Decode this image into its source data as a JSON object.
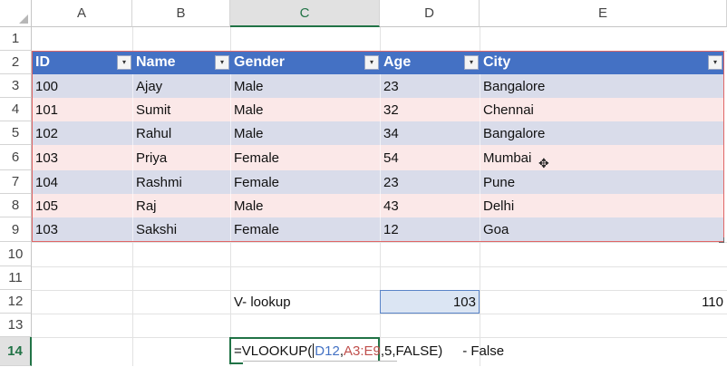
{
  "sheet": {
    "columns": [
      "A",
      "B",
      "C",
      "D",
      "E"
    ],
    "active_column": "C",
    "rows": [
      "1",
      "2",
      "3",
      "4",
      "5",
      "6",
      "7",
      "8",
      "9",
      "10",
      "11",
      "12",
      "13",
      "14"
    ],
    "active_row": "14"
  },
  "table": {
    "headers": [
      "ID",
      "Name",
      "Gender",
      "Age",
      "City"
    ],
    "rows": [
      [
        "100",
        "Ajay",
        "Male",
        "23",
        "Bangalore"
      ],
      [
        "101",
        "Sumit",
        "Male",
        "32",
        "Chennai"
      ],
      [
        "102",
        "Rahul",
        "Male",
        "34",
        "Bangalore"
      ],
      [
        "103",
        "Priya",
        "Female",
        "54",
        "Mumbai"
      ],
      [
        "104",
        "Rashmi",
        "Female",
        "23",
        "Pune"
      ],
      [
        "105",
        "Raj",
        "Male",
        "43",
        "Delhi"
      ],
      [
        "103",
        "Sakshi",
        "Female",
        "12",
        "Goa"
      ]
    ],
    "band_colors": [
      "#d9dcea",
      "#fbe8e8"
    ],
    "header_color": "#4471c4"
  },
  "lookup": {
    "label": "V- lookup",
    "value": "103",
    "result": "110"
  },
  "formula": {
    "prefix": "=VLOOKUP(",
    "ref1": "D12",
    "comma1": ",",
    "ref2": "A3:E9",
    "suffix": ",5,FALSE)",
    "note": "- False"
  },
  "icons": {
    "filter_dropdown": "▾",
    "cursor": "✥"
  }
}
